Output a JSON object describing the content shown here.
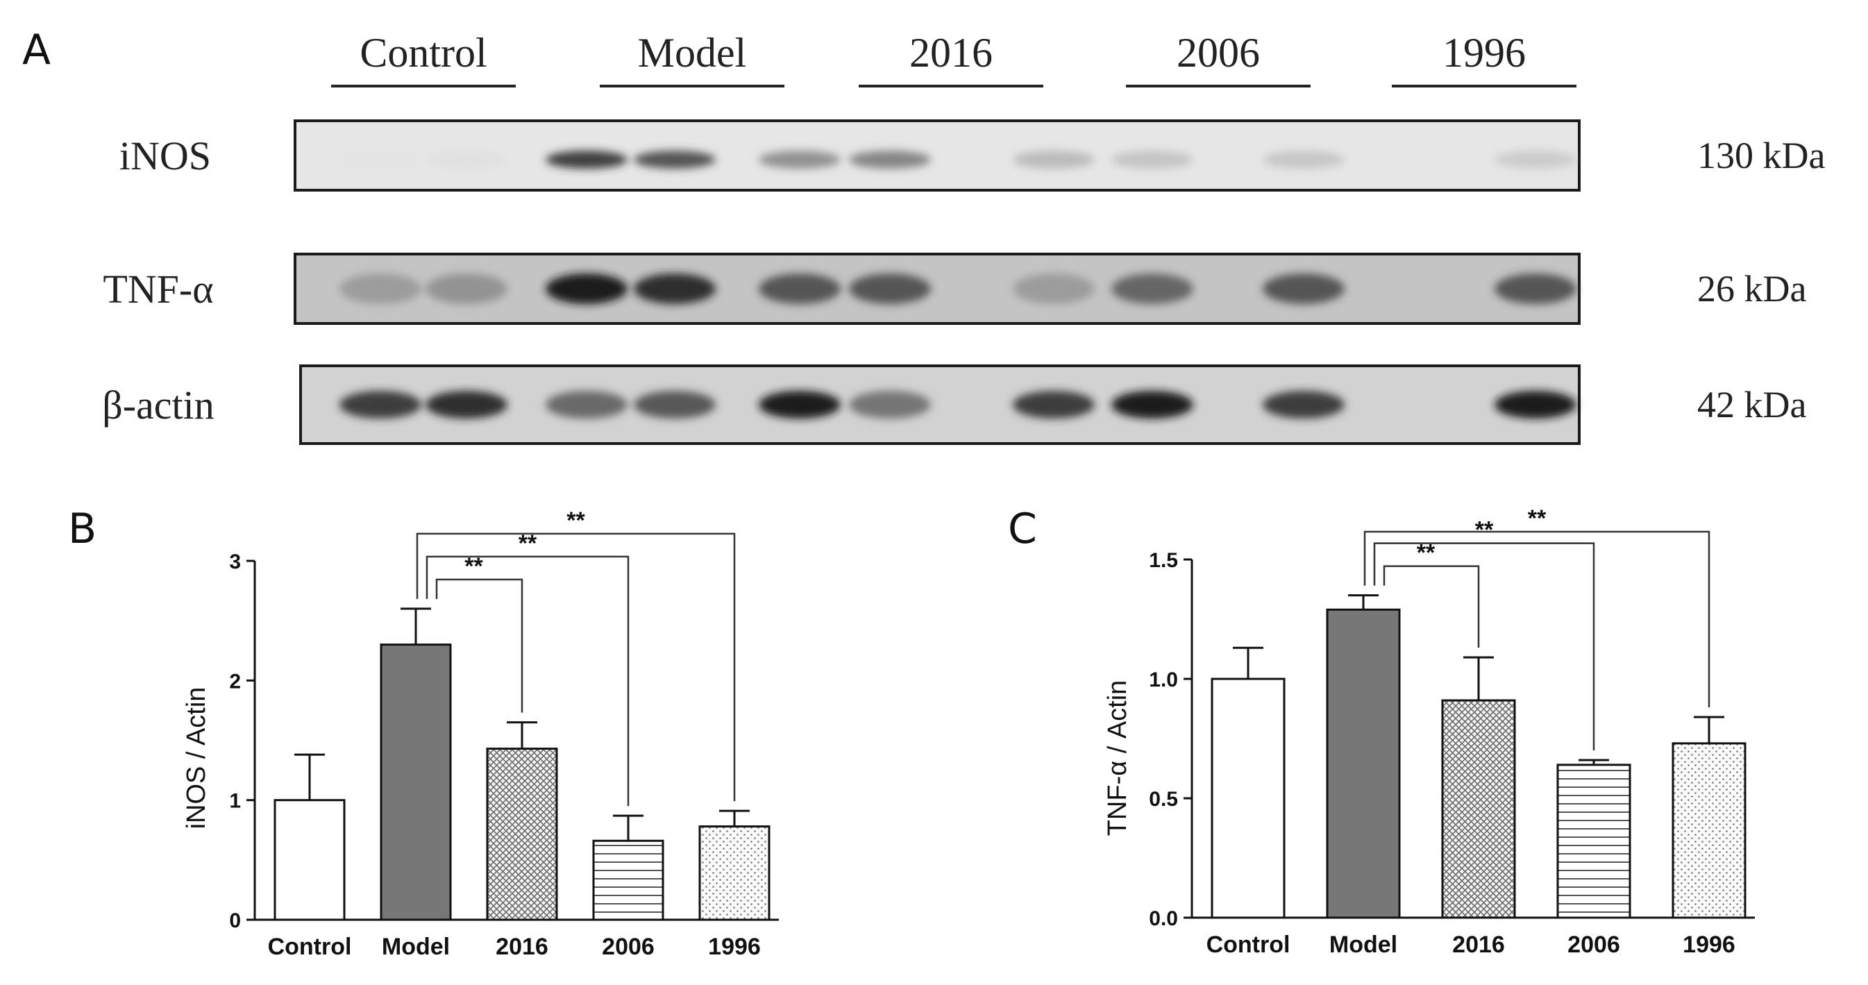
{
  "panel_a": {
    "letter": "A",
    "groups": [
      "Control",
      "Model",
      "2016",
      "2006",
      "1996"
    ],
    "rows": [
      {
        "label": "iNOS",
        "kda": "130 kDa",
        "intensities": [
          0.04,
          0.08,
          0.85,
          0.78,
          0.55,
          0.6,
          0.35,
          0.3,
          0.28,
          0.25
        ]
      },
      {
        "label": "TNF-α",
        "kda": "26 kDa",
        "intensities": [
          0.45,
          0.5,
          0.95,
          0.9,
          0.75,
          0.75,
          0.45,
          0.7,
          0.75,
          0.75
        ]
      },
      {
        "label": "β-actin",
        "kda": "42 kDa",
        "intensities": [
          0.85,
          0.9,
          0.7,
          0.75,
          0.95,
          0.65,
          0.85,
          0.95,
          0.85,
          0.95
        ]
      }
    ]
  },
  "chart_data": [
    {
      "panel_letter": "B",
      "type": "bar",
      "categories": [
        "Control",
        "Model",
        "2016",
        "2006",
        "1996"
      ],
      "values": [
        1.0,
        2.3,
        1.43,
        0.66,
        0.78
      ],
      "errors": [
        0.38,
        0.3,
        0.22,
        0.21,
        0.13
      ],
      "ylabel": "iNOS / Actin",
      "ylim": [
        0,
        3
      ],
      "yticks": [
        "0",
        "1",
        "2",
        "3"
      ],
      "fills": [
        "white",
        "gray",
        "crosshatch",
        "horizontal-lines",
        "dots"
      ],
      "significance": [
        {
          "from": "Model",
          "to": "2016",
          "label": "**"
        },
        {
          "from": "Model",
          "to": "2006",
          "label": "**"
        },
        {
          "from": "Model",
          "to": "1996",
          "label": "**"
        }
      ]
    },
    {
      "panel_letter": "C",
      "type": "bar",
      "categories": [
        "Control",
        "Model",
        "2016",
        "2006",
        "1996"
      ],
      "values": [
        1.0,
        1.29,
        0.91,
        0.64,
        0.73
      ],
      "errors": [
        0.13,
        0.06,
        0.18,
        0.02,
        0.11
      ],
      "ylabel": "TNF-α / Actin",
      "ylim": [
        0,
        1.5
      ],
      "yticks": [
        "0.0",
        "0.5",
        "1.0",
        "1.5"
      ],
      "fills": [
        "white",
        "gray",
        "crosshatch",
        "horizontal-lines",
        "dots"
      ],
      "significance": [
        {
          "from": "Model",
          "to": "2016",
          "label": "**"
        },
        {
          "from": "Model",
          "to": "2006",
          "label": "**"
        },
        {
          "from": "Model",
          "to": "1996",
          "label": "**"
        }
      ]
    }
  ]
}
